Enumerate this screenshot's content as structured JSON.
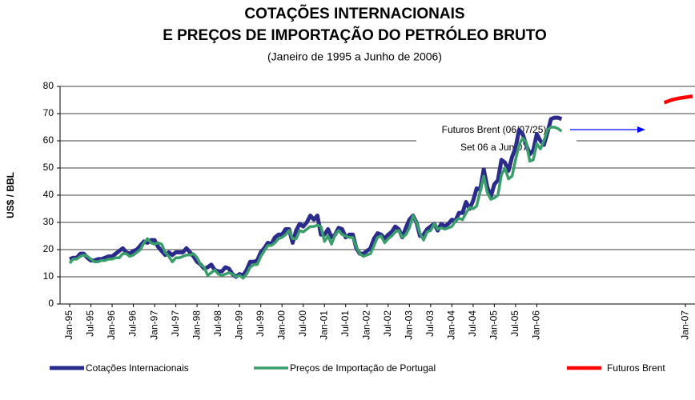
{
  "chart_data": {
    "type": "line",
    "title": [
      "COTAÇÕES INTERNACIONAIS",
      "E PREÇOS DE IMPORTAÇÃO DO PETRÓLEO BRUTO"
    ],
    "subtitle": "(Janeiro de 1995 a Junho de 2006)",
    "y_label": "US$ / BBL",
    "annotation": [
      "Futuros Brent (06/07/25)",
      "Set 06 a Jun 07"
    ],
    "ylim": [
      0,
      80
    ],
    "yticks": [
      0,
      10,
      20,
      30,
      40,
      50,
      60,
      70,
      80
    ],
    "grid": true,
    "categories": [
      "Jan-95",
      null,
      null,
      null,
      null,
      null,
      "Jul-95",
      null,
      null,
      null,
      null,
      null,
      "Jan-96",
      null,
      null,
      null,
      null,
      null,
      "Jul-96",
      null,
      null,
      null,
      null,
      null,
      "Jan-97",
      null,
      null,
      null,
      null,
      null,
      "Jul-97",
      null,
      null,
      null,
      null,
      null,
      "Jan-98",
      null,
      null,
      null,
      null,
      null,
      "Jul-98",
      null,
      null,
      null,
      null,
      null,
      "Jan-99",
      null,
      null,
      null,
      null,
      null,
      "Jul-99",
      null,
      null,
      null,
      null,
      null,
      "Jan-00",
      null,
      null,
      null,
      null,
      null,
      "Jul-00",
      null,
      null,
      null,
      null,
      null,
      "Jan-01",
      null,
      null,
      null,
      null,
      null,
      "Jul-01",
      null,
      null,
      null,
      null,
      null,
      "Jan-02",
      null,
      null,
      null,
      null,
      null,
      "Jul-02",
      null,
      null,
      null,
      null,
      null,
      "Jan-03",
      null,
      null,
      null,
      null,
      null,
      "Jul-03",
      null,
      null,
      null,
      null,
      null,
      "Jan-04",
      null,
      null,
      null,
      null,
      null,
      "Jul-04",
      null,
      null,
      null,
      null,
      null,
      "Jan-05",
      null,
      null,
      null,
      null,
      null,
      "Jul-05",
      null,
      null,
      null,
      null,
      null,
      "Jan-06",
      null,
      null,
      null,
      null,
      null,
      null,
      null,
      null,
      null,
      null,
      null,
      null,
      null,
      null,
      null,
      null,
      null,
      null,
      null,
      null,
      null,
      null,
      null,
      null,
      null,
      null,
      null,
      null,
      null,
      null,
      null,
      null,
      null,
      null,
      null,
      null,
      null,
      null,
      null,
      null,
      null,
      "Jan-07",
      null,
      null
    ],
    "series": [
      {
        "name": "Cotações Internacionais",
        "color": "#2b2b8c",
        "width": 5,
        "values": [
          16.5,
          17,
          17,
          18.5,
          18.5,
          17,
          16,
          16,
          16.5,
          16.5,
          17,
          17.5,
          17.5,
          18.5,
          19.5,
          20.5,
          19,
          18.5,
          19.5,
          20,
          21.5,
          23,
          22.5,
          23.5,
          23.5,
          21,
          19.5,
          18,
          19,
          18,
          19,
          19,
          19,
          20.5,
          19,
          17.5,
          15.5,
          14.5,
          13,
          13.5,
          14.5,
          12.5,
          12,
          12,
          13.5,
          13,
          11,
          10,
          11,
          10.5,
          12.5,
          15.5,
          15.5,
          16,
          19,
          20.5,
          22.5,
          22,
          24.5,
          25.5,
          25.5,
          27.5,
          27.5,
          22.5,
          27,
          29.5,
          28.5,
          30,
          32.5,
          31,
          32.5,
          25.5,
          25.5,
          27.5,
          24.5,
          25.5,
          28,
          27.5,
          24.5,
          25.5,
          25.5,
          20.5,
          18.5,
          18.5,
          19.5,
          20.5,
          24,
          26,
          25.5,
          24,
          25.5,
          26.5,
          28.5,
          27.5,
          24.5,
          28,
          31,
          32.5,
          30,
          25,
          25.5,
          27.5,
          28.5,
          29.5,
          27,
          29.5,
          28.5,
          29.5,
          31,
          30.5,
          33.5,
          33.5,
          37.5,
          35,
          38,
          42.5,
          42,
          49.5,
          43,
          39.5,
          44,
          45.5,
          53,
          52,
          49,
          54,
          57.5,
          64,
          62.5,
          58.5,
          55,
          56.5,
          62.5,
          60,
          58.5,
          63,
          68,
          68.5,
          68.5,
          68,
          null,
          null,
          null,
          null,
          null,
          null,
          null,
          null,
          null,
          null,
          null,
          null,
          null,
          null,
          null,
          null,
          null,
          null,
          null,
          null,
          null,
          null,
          null,
          null,
          null,
          null,
          null,
          null,
          null,
          null,
          null,
          null,
          null,
          null,
          null,
          null,
          null
        ]
      },
      {
        "name": "Preços de Importação de Portugal",
        "color": "#3a9e6a",
        "width": 3.5,
        "values": [
          15,
          16.5,
          16.5,
          17.5,
          18,
          17.5,
          16.5,
          15.5,
          15.5,
          16,
          16,
          16.5,
          16.5,
          17,
          17,
          18.5,
          18.5,
          17.5,
          18,
          19,
          20,
          22.5,
          24,
          22.5,
          22,
          22.5,
          22,
          19,
          17.5,
          15.5,
          17,
          17,
          17.5,
          18,
          18,
          18.5,
          17,
          14.5,
          13.5,
          10.5,
          11.5,
          12.5,
          11,
          10.5,
          11,
          11.5,
          11,
          10,
          10.5,
          9.5,
          11,
          13.5,
          14.5,
          14.5,
          17.5,
          19.5,
          21.5,
          21.5,
          22.5,
          24,
          24.5,
          25.5,
          27,
          24,
          24,
          27,
          26.5,
          27.5,
          28.5,
          28.5,
          29,
          28.5,
          23,
          25,
          22,
          25.5,
          27,
          25.5,
          25,
          24.5,
          24.5,
          21,
          18.5,
          17.5,
          18,
          18.5,
          21.5,
          24.5,
          25,
          22.5,
          24,
          25,
          26.5,
          27,
          24.5,
          25.5,
          28,
          32.5,
          30,
          26,
          23.5,
          26.5,
          27,
          29.5,
          27.5,
          28,
          27.5,
          28,
          28.5,
          30.5,
          31.5,
          31,
          33.5,
          35.5,
          35,
          36,
          41.5,
          47,
          41,
          38.5,
          39,
          40,
          47.5,
          50,
          46,
          47,
          53,
          58.5,
          61,
          59.5,
          52.5,
          53,
          59,
          57,
          60,
          64,
          65,
          65,
          64.5,
          63.5,
          null,
          null,
          null,
          null,
          null,
          null,
          null,
          null,
          null,
          null,
          null,
          null,
          null,
          null,
          null,
          null,
          null,
          null,
          null,
          null,
          null,
          null,
          null,
          null,
          null,
          null,
          null,
          null,
          null,
          null,
          null,
          null,
          null,
          null,
          null,
          null,
          null
        ]
      },
      {
        "name": "Futuros Brent",
        "color": "#ff0000",
        "width": 4.5,
        "values": [
          null,
          null,
          null,
          null,
          null,
          null,
          null,
          null,
          null,
          null,
          null,
          null,
          null,
          null,
          null,
          null,
          null,
          null,
          null,
          null,
          null,
          null,
          null,
          null,
          null,
          null,
          null,
          null,
          null,
          null,
          null,
          null,
          null,
          null,
          null,
          null,
          null,
          null,
          null,
          null,
          null,
          null,
          null,
          null,
          null,
          null,
          null,
          null,
          null,
          null,
          null,
          null,
          null,
          null,
          null,
          null,
          null,
          null,
          null,
          null,
          null,
          null,
          null,
          null,
          null,
          null,
          null,
          null,
          null,
          null,
          null,
          null,
          null,
          null,
          null,
          null,
          null,
          null,
          null,
          null,
          null,
          null,
          null,
          null,
          null,
          null,
          null,
          null,
          null,
          null,
          null,
          null,
          null,
          null,
          null,
          null,
          null,
          null,
          null,
          null,
          null,
          null,
          null,
          null,
          null,
          null,
          null,
          null,
          null,
          null,
          null,
          null,
          null,
          null,
          null,
          null,
          null,
          null,
          null,
          null,
          null,
          null,
          null,
          null,
          null,
          null,
          null,
          null,
          null,
          null,
          null,
          null,
          null,
          null,
          null,
          null,
          null,
          null,
          null,
          null,
          null,
          null,
          null,
          null,
          null,
          null,
          null,
          null,
          null,
          null,
          null,
          null,
          null,
          null,
          null,
          null,
          null,
          null,
          null,
          null,
          null,
          null,
          null,
          null,
          null,
          null,
          null,
          null,
          74,
          74.5,
          75,
          75.3,
          75.6,
          75.8,
          76,
          76.2,
          76.4
        ]
      }
    ]
  }
}
